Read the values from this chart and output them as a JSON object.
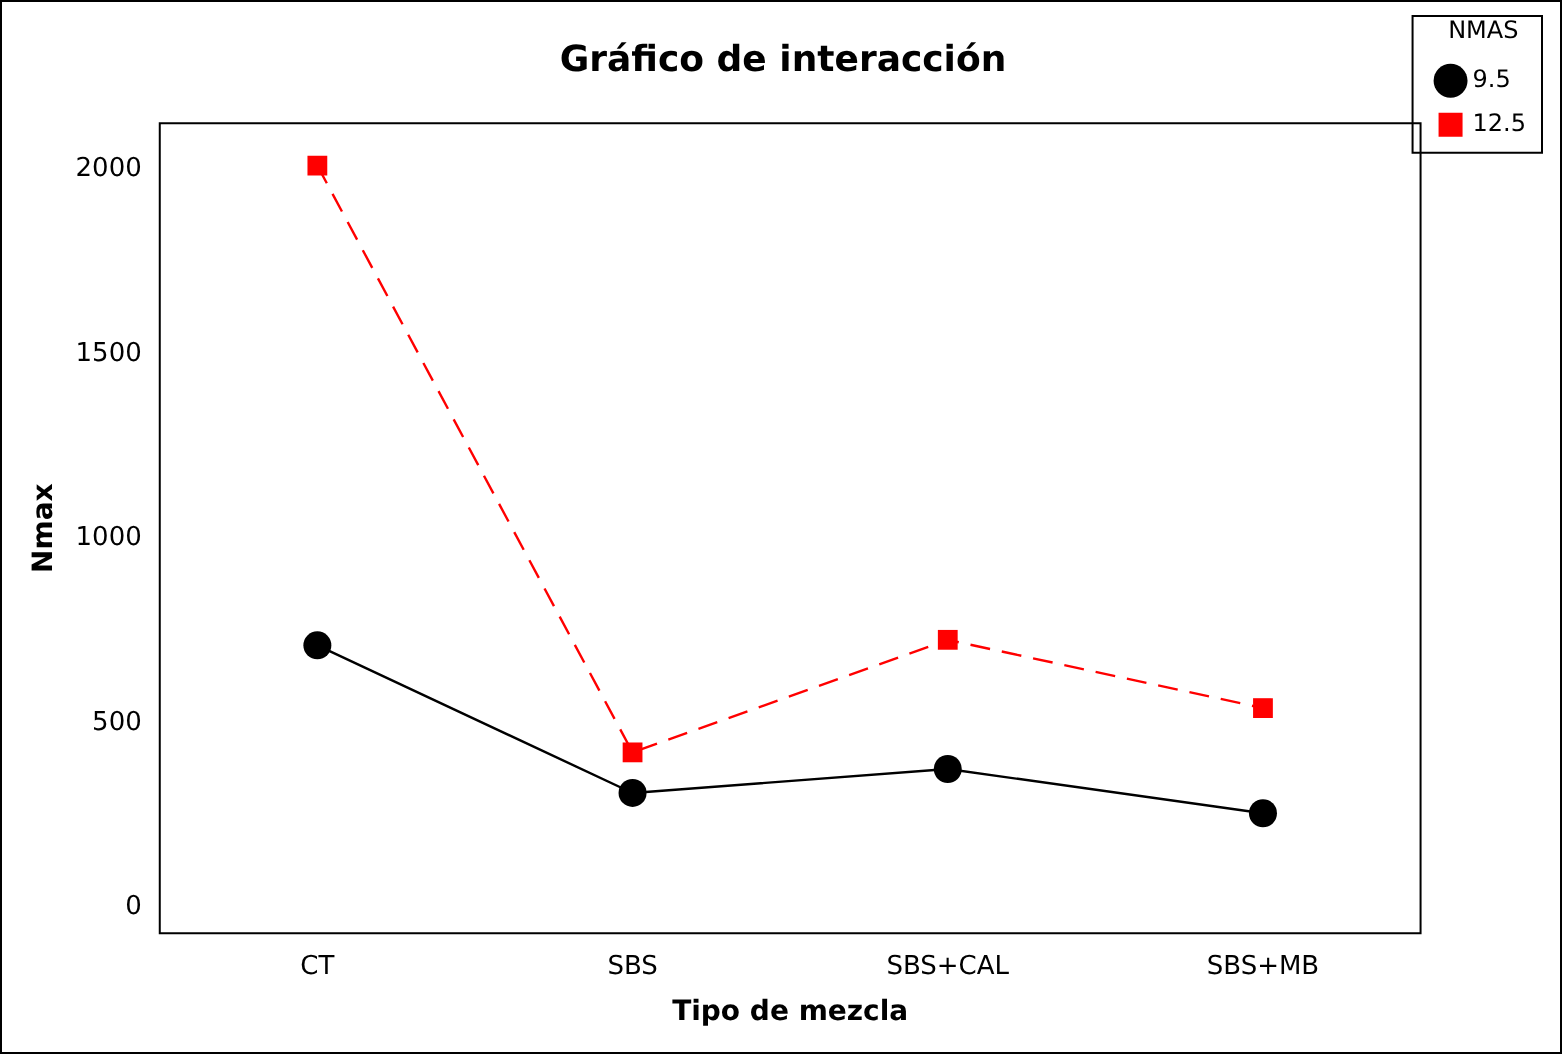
{
  "chart_data": {
    "type": "line",
    "title": "Gráfico de interacción",
    "xlabel": "Tipo de mezcla",
    "ylabel": "Nmax",
    "legend_title": "NMAS",
    "legend": "top right",
    "categories": [
      "CT",
      "SBS",
      "SBS+CAL",
      "SBS+MB"
    ],
    "series": [
      {
        "name": "9.5",
        "color": "#000000",
        "values": [
          710,
          310,
          375,
          255
        ],
        "marker": "circle",
        "line_style": "solid"
      },
      {
        "name": "12.5",
        "color": "#ff0000",
        "values": [
          2010,
          420,
          725,
          540
        ],
        "marker": "square",
        "line_style": "dashed"
      }
    ],
    "ylim": [
      -70,
      2125
    ],
    "yticks": [
      0,
      500,
      1000,
      1500,
      2000
    ],
    "grid": false
  }
}
